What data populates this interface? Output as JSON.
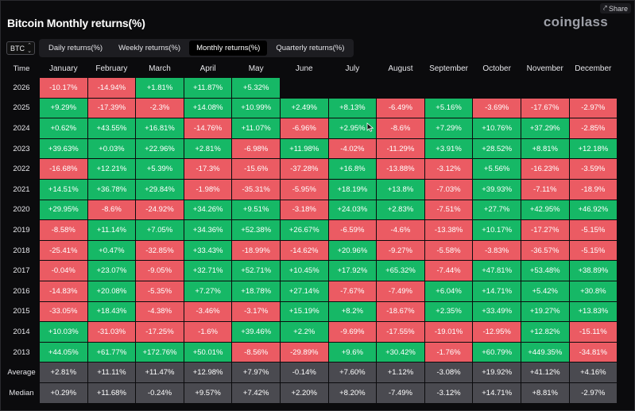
{
  "header": {
    "title": "Bitcoin Monthly returns(%)",
    "brand": "coinglass",
    "share_label": "Share"
  },
  "controls": {
    "asset": "BTC",
    "tabs": [
      "Daily returns(%)",
      "Weekly returns(%)",
      "Monthly returns(%)",
      "Quarterly returns(%)"
    ],
    "active_tab": "Monthly returns(%)"
  },
  "colors": {
    "positive": "#16b866",
    "negative": "#eb5b63",
    "summary": "#4a4a50"
  },
  "table": {
    "columns": [
      "Time",
      "January",
      "February",
      "March",
      "April",
      "May",
      "June",
      "July",
      "August",
      "September",
      "October",
      "November",
      "December"
    ],
    "rows": [
      {
        "year": "2026",
        "values": [
          "-10.17%",
          "-14.94%",
          "+1.81%",
          "+11.87%",
          "+5.32%",
          "",
          "",
          "",
          "",
          "",
          "",
          ""
        ]
      },
      {
        "year": "2025",
        "values": [
          "+9.29%",
          "-17.39%",
          "-2.3%",
          "+14.08%",
          "+10.99%",
          "+2.49%",
          "+8.13%",
          "-6.49%",
          "+5.16%",
          "-3.69%",
          "-17.67%",
          "-2.97%"
        ]
      },
      {
        "year": "2024",
        "values": [
          "+0.62%",
          "+43.55%",
          "+16.81%",
          "-14.76%",
          "+11.07%",
          "-6.96%",
          "+2.95%",
          "-8.6%",
          "+7.29%",
          "+10.76%",
          "+37.29%",
          "-2.85%"
        ]
      },
      {
        "year": "2023",
        "values": [
          "+39.63%",
          "+0.03%",
          "+22.96%",
          "+2.81%",
          "-6.98%",
          "+11.98%",
          "-4.02%",
          "-11.29%",
          "+3.91%",
          "+28.52%",
          "+8.81%",
          "+12.18%"
        ]
      },
      {
        "year": "2022",
        "values": [
          "-16.68%",
          "+12.21%",
          "+5.39%",
          "-17.3%",
          "-15.6%",
          "-37.28%",
          "+16.8%",
          "-13.88%",
          "-3.12%",
          "+5.56%",
          "-16.23%",
          "-3.59%"
        ]
      },
      {
        "year": "2021",
        "values": [
          "+14.51%",
          "+36.78%",
          "+29.84%",
          "-1.98%",
          "-35.31%",
          "-5.95%",
          "+18.19%",
          "+13.8%",
          "-7.03%",
          "+39.93%",
          "-7.11%",
          "-18.9%"
        ]
      },
      {
        "year": "2020",
        "values": [
          "+29.95%",
          "-8.6%",
          "-24.92%",
          "+34.26%",
          "+9.51%",
          "-3.18%",
          "+24.03%",
          "+2.83%",
          "-7.51%",
          "+27.7%",
          "+42.95%",
          "+46.92%"
        ]
      },
      {
        "year": "2019",
        "values": [
          "-8.58%",
          "+11.14%",
          "+7.05%",
          "+34.36%",
          "+52.38%",
          "+26.67%",
          "-6.59%",
          "-4.6%",
          "-13.38%",
          "+10.17%",
          "-17.27%",
          "-5.15%"
        ]
      },
      {
        "year": "2018",
        "values": [
          "-25.41%",
          "+0.47%",
          "-32.85%",
          "+33.43%",
          "-18.99%",
          "-14.62%",
          "+20.96%",
          "-9.27%",
          "-5.58%",
          "-3.83%",
          "-36.57%",
          "-5.15%"
        ]
      },
      {
        "year": "2017",
        "values": [
          "-0.04%",
          "+23.07%",
          "-9.05%",
          "+32.71%",
          "+52.71%",
          "+10.45%",
          "+17.92%",
          "+65.32%",
          "-7.44%",
          "+47.81%",
          "+53.48%",
          "+38.89%"
        ]
      },
      {
        "year": "2016",
        "values": [
          "-14.83%",
          "+20.08%",
          "-5.35%",
          "+7.27%",
          "+18.78%",
          "+27.14%",
          "-7.67%",
          "-7.49%",
          "+6.04%",
          "+14.71%",
          "+5.42%",
          "+30.8%"
        ]
      },
      {
        "year": "2015",
        "values": [
          "-33.05%",
          "+18.43%",
          "-4.38%",
          "-3.46%",
          "-3.17%",
          "+15.19%",
          "+8.2%",
          "-18.67%",
          "+2.35%",
          "+33.49%",
          "+19.27%",
          "+13.83%"
        ]
      },
      {
        "year": "2014",
        "values": [
          "+10.03%",
          "-31.03%",
          "-17.25%",
          "-1.6%",
          "+39.46%",
          "+2.2%",
          "-9.69%",
          "-17.55%",
          "-19.01%",
          "-12.95%",
          "+12.82%",
          "-15.11%"
        ]
      },
      {
        "year": "2013",
        "values": [
          "+44.05%",
          "+61.77%",
          "+172.76%",
          "+50.01%",
          "-8.56%",
          "-29.89%",
          "+9.6%",
          "+30.42%",
          "-1.76%",
          "+60.79%",
          "+449.35%",
          "-34.81%"
        ]
      }
    ],
    "summary": [
      {
        "label": "Average",
        "values": [
          "+2.81%",
          "+11.11%",
          "+11.47%",
          "+12.98%",
          "+7.97%",
          "-0.14%",
          "+7.60%",
          "+1.12%",
          "-3.08%",
          "+19.92%",
          "+41.12%",
          "+4.16%"
        ]
      },
      {
        "label": "Median",
        "values": [
          "+0.29%",
          "+11.68%",
          "-0.24%",
          "+9.57%",
          "+7.42%",
          "+2.20%",
          "+8.20%",
          "-7.49%",
          "-3.12%",
          "+14.71%",
          "+8.81%",
          "-2.97%"
        ]
      }
    ]
  }
}
